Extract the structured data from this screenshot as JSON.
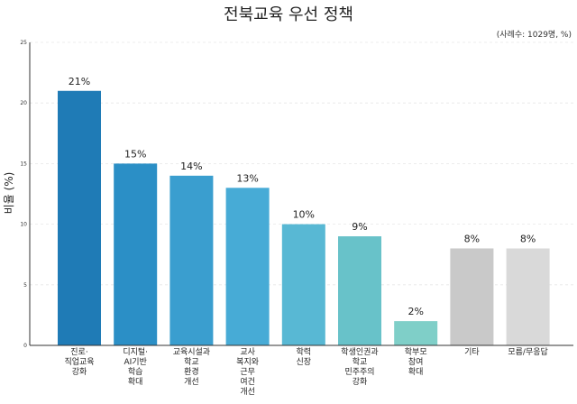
{
  "chart_data": {
    "type": "bar",
    "title": "전북교육 우선 정책",
    "subtitle": "(사례수: 1029명, %)",
    "xlabel": "",
    "ylabel": "비율 (%)",
    "ylim": [
      0,
      25
    ],
    "yticks": [
      "0",
      "5",
      "10",
      "15",
      "20",
      "25"
    ],
    "grid": true,
    "categories": [
      [
        "진로·",
        "직업교육",
        "강화"
      ],
      [
        "디지털·",
        "AI기반",
        "학습",
        "확대"
      ],
      [
        "교육시설과",
        "학교",
        "환경",
        "개선"
      ],
      [
        "교사",
        "복지와",
        "근무",
        "여건",
        "개선"
      ],
      [
        "학력",
        "신장"
      ],
      [
        "학생인권과",
        "학교",
        "민주주의",
        "강화"
      ],
      [
        "학부모",
        "참여",
        "확대"
      ],
      [
        "기타"
      ],
      [
        "모름/무응답"
      ]
    ],
    "values": [
      21,
      15,
      14,
      13,
      10,
      9,
      2,
      8,
      8
    ],
    "data_labels": [
      "21%",
      "15%",
      "14%",
      "13%",
      "10%",
      "9%",
      "2%",
      "8%",
      "8%"
    ],
    "colors": [
      "#1f7bb6",
      "#2b8fc6",
      "#3a9ecf",
      "#47abd6",
      "#58b8d4",
      "#68c2c9",
      "#7fcfc8",
      "#c9c9c9",
      "#d9d9d9"
    ]
  }
}
